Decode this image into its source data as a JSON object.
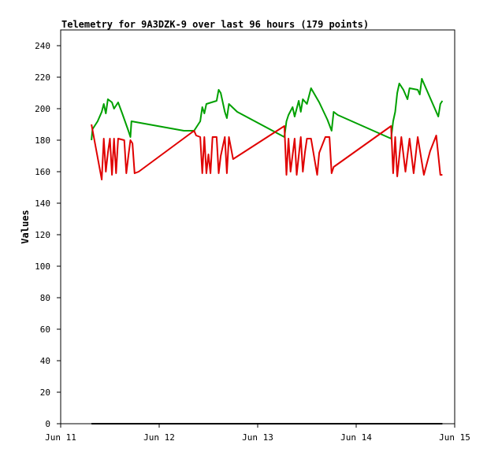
{
  "chart_data": {
    "type": "line",
    "title": "Telemetry for 9A3DZK-9 over last 96 hours (179 points)",
    "xlabel": "",
    "ylabel": "Values",
    "x_range": [
      "Jun 11",
      "Jun 15"
    ],
    "x_ticks": [
      "Jun 11",
      "Jun 12",
      "Jun 13",
      "Jun 14",
      "Jun 15"
    ],
    "ylim": [
      0,
      250
    ],
    "y_ticks": [
      0,
      20,
      40,
      60,
      80,
      100,
      120,
      140,
      160,
      180,
      200,
      220,
      240
    ],
    "grid": false,
    "colors": {
      "green": "#00a000",
      "red": "#e00000",
      "black": "#000000"
    },
    "series": [
      {
        "color": "#00a000",
        "points": [
          [
            "Jun 11 07:30",
            180
          ],
          [
            "Jun 11 07:45",
            187
          ],
          [
            "Jun 11 09:00",
            192
          ],
          [
            "Jun 11 10:00",
            198
          ],
          [
            "Jun 11 10:30",
            203
          ],
          [
            "Jun 11 11:00",
            197
          ],
          [
            "Jun 11 11:30",
            206
          ],
          [
            "Jun 11 12:30",
            204
          ],
          [
            "Jun 11 13:00",
            200
          ],
          [
            "Jun 11 14:00",
            204
          ],
          [
            "Jun 11 15:00",
            197
          ],
          [
            "Jun 11 16:30",
            186
          ],
          [
            "Jun 11 17:00",
            182
          ],
          [
            "Jun 11 17:15",
            192
          ],
          [
            "Jun 12 06:00",
            186
          ],
          [
            "Jun 12 08:30",
            186
          ],
          [
            "Jun 12 09:30",
            190
          ],
          [
            "Jun 12 10:00",
            192
          ],
          [
            "Jun 12 10:30",
            201
          ],
          [
            "Jun 12 11:00",
            197
          ],
          [
            "Jun 12 11:30",
            203
          ],
          [
            "Jun 12 14:00",
            205
          ],
          [
            "Jun 12 14:30",
            212
          ],
          [
            "Jun 12 15:00",
            210
          ],
          [
            "Jun 12 16:00",
            198
          ],
          [
            "Jun 12 16:30",
            194
          ],
          [
            "Jun 12 17:00",
            203
          ],
          [
            "Jun 12 19:00",
            198
          ],
          [
            "Jun 13 06:30",
            182
          ],
          [
            "Jun 13 07:00",
            192
          ],
          [
            "Jun 13 07:30",
            196
          ],
          [
            "Jun 13 08:30",
            201
          ],
          [
            "Jun 13 09:00",
            195
          ],
          [
            "Jun 13 10:00",
            205
          ],
          [
            "Jun 13 10:30",
            198
          ],
          [
            "Jun 13 11:00",
            206
          ],
          [
            "Jun 13 12:00",
            203
          ],
          [
            "Jun 13 13:00",
            213
          ],
          [
            "Jun 13 15:00",
            204
          ],
          [
            "Jun 13 17:00",
            193
          ],
          [
            "Jun 13 18:00",
            186
          ],
          [
            "Jun 13 18:30",
            198
          ],
          [
            "Jun 13 19:30",
            196
          ],
          [
            "Jun 14 08:30",
            181
          ],
          [
            "Jun 14 09:00",
            192
          ],
          [
            "Jun 14 09:30",
            198
          ],
          [
            "Jun 14 10:00",
            210
          ],
          [
            "Jun 14 10:30",
            216
          ],
          [
            "Jun 14 11:30",
            212
          ],
          [
            "Jun 14 12:30",
            206
          ],
          [
            "Jun 14 13:00",
            213
          ],
          [
            "Jun 14 15:00",
            212
          ],
          [
            "Jun 14 15:30",
            209
          ],
          [
            "Jun 14 16:00",
            219
          ],
          [
            "Jun 14 17:00",
            213
          ],
          [
            "Jun 14 20:00",
            195
          ],
          [
            "Jun 14 20:30",
            203
          ],
          [
            "Jun 14 21:00",
            205
          ]
        ]
      },
      {
        "color": "#e00000",
        "points": [
          [
            "Jun 11 07:30",
            190
          ],
          [
            "Jun 11 08:00",
            183
          ],
          [
            "Jun 11 10:00",
            155
          ],
          [
            "Jun 11 10:30",
            181
          ],
          [
            "Jun 11 11:00",
            160
          ],
          [
            "Jun 11 11:30",
            172
          ],
          [
            "Jun 11 12:00",
            181
          ],
          [
            "Jun 11 12:30",
            158
          ],
          [
            "Jun 11 13:00",
            181
          ],
          [
            "Jun 11 13:30",
            159
          ],
          [
            "Jun 11 14:00",
            181
          ],
          [
            "Jun 11 15:30",
            180
          ],
          [
            "Jun 11 16:00",
            159
          ],
          [
            "Jun 11 16:30",
            170
          ],
          [
            "Jun 11 17:00",
            180
          ],
          [
            "Jun 11 17:30",
            178
          ],
          [
            "Jun 11 18:00",
            159
          ],
          [
            "Jun 11 19:00",
            160
          ],
          [
            "Jun 12 08:30",
            186
          ],
          [
            "Jun 12 09:00",
            183
          ],
          [
            "Jun 12 10:00",
            182
          ],
          [
            "Jun 12 10:30",
            159
          ],
          [
            "Jun 12 11:00",
            182
          ],
          [
            "Jun 12 11:30",
            159
          ],
          [
            "Jun 12 12:00",
            171
          ],
          [
            "Jun 12 12:30",
            159
          ],
          [
            "Jun 12 13:00",
            182
          ],
          [
            "Jun 12 14:00",
            182
          ],
          [
            "Jun 12 14:30",
            159
          ],
          [
            "Jun 12 15:00",
            170
          ],
          [
            "Jun 12 16:00",
            182
          ],
          [
            "Jun 12 16:30",
            159
          ],
          [
            "Jun 12 17:00",
            182
          ],
          [
            "Jun 12 18:00",
            168
          ],
          [
            "Jun 13 06:30",
            189
          ],
          [
            "Jun 13 07:00",
            158
          ],
          [
            "Jun 13 07:30",
            181
          ],
          [
            "Jun 13 08:00",
            160
          ],
          [
            "Jun 13 09:00",
            181
          ],
          [
            "Jun 13 09:30",
            158
          ],
          [
            "Jun 13 10:30",
            182
          ],
          [
            "Jun 13 11:00",
            160
          ],
          [
            "Jun 13 11:30",
            172
          ],
          [
            "Jun 13 12:00",
            181
          ],
          [
            "Jun 13 13:00",
            181
          ],
          [
            "Jun 13 14:30",
            158
          ],
          [
            "Jun 13 15:00",
            172
          ],
          [
            "Jun 13 16:30",
            182
          ],
          [
            "Jun 13 17:30",
            182
          ],
          [
            "Jun 13 18:00",
            159
          ],
          [
            "Jun 13 18:30",
            163
          ],
          [
            "Jun 14 08:30",
            189
          ],
          [
            "Jun 14 09:00",
            159
          ],
          [
            "Jun 14 09:30",
            182
          ],
          [
            "Jun 14 10:00",
            157
          ],
          [
            "Jun 14 11:00",
            182
          ],
          [
            "Jun 14 12:00",
            160
          ],
          [
            "Jun 14 13:00",
            181
          ],
          [
            "Jun 14 14:00",
            159
          ],
          [
            "Jun 14 15:00",
            182
          ],
          [
            "Jun 14 16:30",
            158
          ],
          [
            "Jun 14 18:00",
            173
          ],
          [
            "Jun 14 19:30",
            183
          ],
          [
            "Jun 14 20:30",
            158
          ],
          [
            "Jun 14 21:00",
            158
          ]
        ]
      },
      {
        "color": "#000000",
        "points": [
          [
            "Jun 11 07:30",
            0
          ],
          [
            "Jun 14 21:00",
            0
          ]
        ]
      }
    ]
  }
}
